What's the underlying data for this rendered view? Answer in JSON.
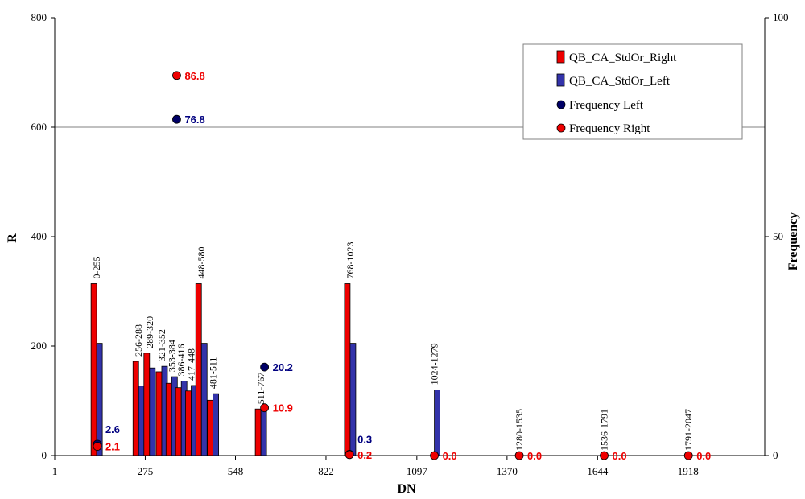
{
  "chart_data": {
    "type": "bar",
    "title": "",
    "xlabel": "DN",
    "ylabel": "R",
    "y2label": "Frequency",
    "xlim": [
      1,
      2150
    ],
    "ylim": [
      0,
      800
    ],
    "y2lim": [
      0,
      100
    ],
    "x_ticks": [
      1,
      275,
      548,
      822,
      1097,
      1370,
      1644,
      1918
    ],
    "y_ticks": [
      0,
      200,
      400,
      600,
      800
    ],
    "y2_ticks": [
      0,
      50,
      100
    ],
    "gridlines_y": [
      600
    ],
    "colors": {
      "right": "#ee0000",
      "left": "#3333aa",
      "freq_left": "#000066",
      "freq_right": "#ee0000",
      "label_left": "#000080",
      "label_right": "#ee0000"
    },
    "legend": {
      "position": "top-right",
      "entries": [
        "QB_CA_StdOr_Right",
        "QB_CA_StdOr_Left",
        "Frequency Left",
        "Frequency Right"
      ]
    },
    "categories": [
      {
        "label": "0-255",
        "x": 128,
        "right": 314,
        "left": 205,
        "show_label": true
      },
      {
        "label": "256-288",
        "x": 255,
        "right": 172,
        "left": 127,
        "show_label": true
      },
      {
        "label": "289-320",
        "x": 288,
        "right": 187,
        "left": 160,
        "show_label": true
      },
      {
        "label": "321-352",
        "x": 325,
        "right": 153,
        "left": 163,
        "show_label": true
      },
      {
        "label": "353-384",
        "x": 355,
        "right": 132,
        "left": 144,
        "show_label": true
      },
      {
        "label": "386-416",
        "x": 384,
        "right": 124,
        "left": 136,
        "show_label": true
      },
      {
        "label": "417-448",
        "x": 414,
        "right": 118,
        "left": 128,
        "show_label": true
      },
      {
        "label": "448-580",
        "x": 445,
        "right": 314,
        "left": 205,
        "show_label": true
      },
      {
        "label": "481-511",
        "x": 480,
        "right": 101,
        "left": 113,
        "show_label": true
      },
      {
        "label": "511-767",
        "x": 625,
        "right": 85,
        "left": 82,
        "show_label": true
      },
      {
        "label": "768-1023",
        "x": 895,
        "right": 314,
        "left": 205,
        "show_label": true
      },
      {
        "label": "1024-1279",
        "x": 1150,
        "right": 0,
        "left": 120,
        "show_label": true
      },
      {
        "label": "1280-1535",
        "x": 1407,
        "right": 0,
        "left": 0,
        "show_label": true
      },
      {
        "label": "1536-1791",
        "x": 1664,
        "right": 0,
        "left": 0,
        "show_label": true
      },
      {
        "label": "1791-2047",
        "x": 1919,
        "right": 0,
        "left": 0,
        "show_label": true
      }
    ],
    "frequency_left": [
      {
        "x": 130,
        "value": 2.6,
        "label": "2.6"
      },
      {
        "x": 370,
        "value": 76.8,
        "label": "76.8"
      },
      {
        "x": 636,
        "value": 20.2,
        "label": "20.2"
      },
      {
        "x": 893,
        "value": 0.3,
        "label": "0.3"
      }
    ],
    "frequency_right": [
      {
        "x": 130,
        "value": 2.1,
        "label": "2.1"
      },
      {
        "x": 370,
        "value": 86.8,
        "label": "86.8"
      },
      {
        "x": 636,
        "value": 10.9,
        "label": "10.9"
      },
      {
        "x": 893,
        "value": 0.2,
        "label": "0.2"
      },
      {
        "x": 1150,
        "value": 0.0,
        "label": "0.0"
      },
      {
        "x": 1407,
        "value": 0.0,
        "label": "0.0"
      },
      {
        "x": 1664,
        "value": 0.0,
        "label": "0.0"
      },
      {
        "x": 1919,
        "value": 0.0,
        "label": "0.0"
      }
    ]
  }
}
